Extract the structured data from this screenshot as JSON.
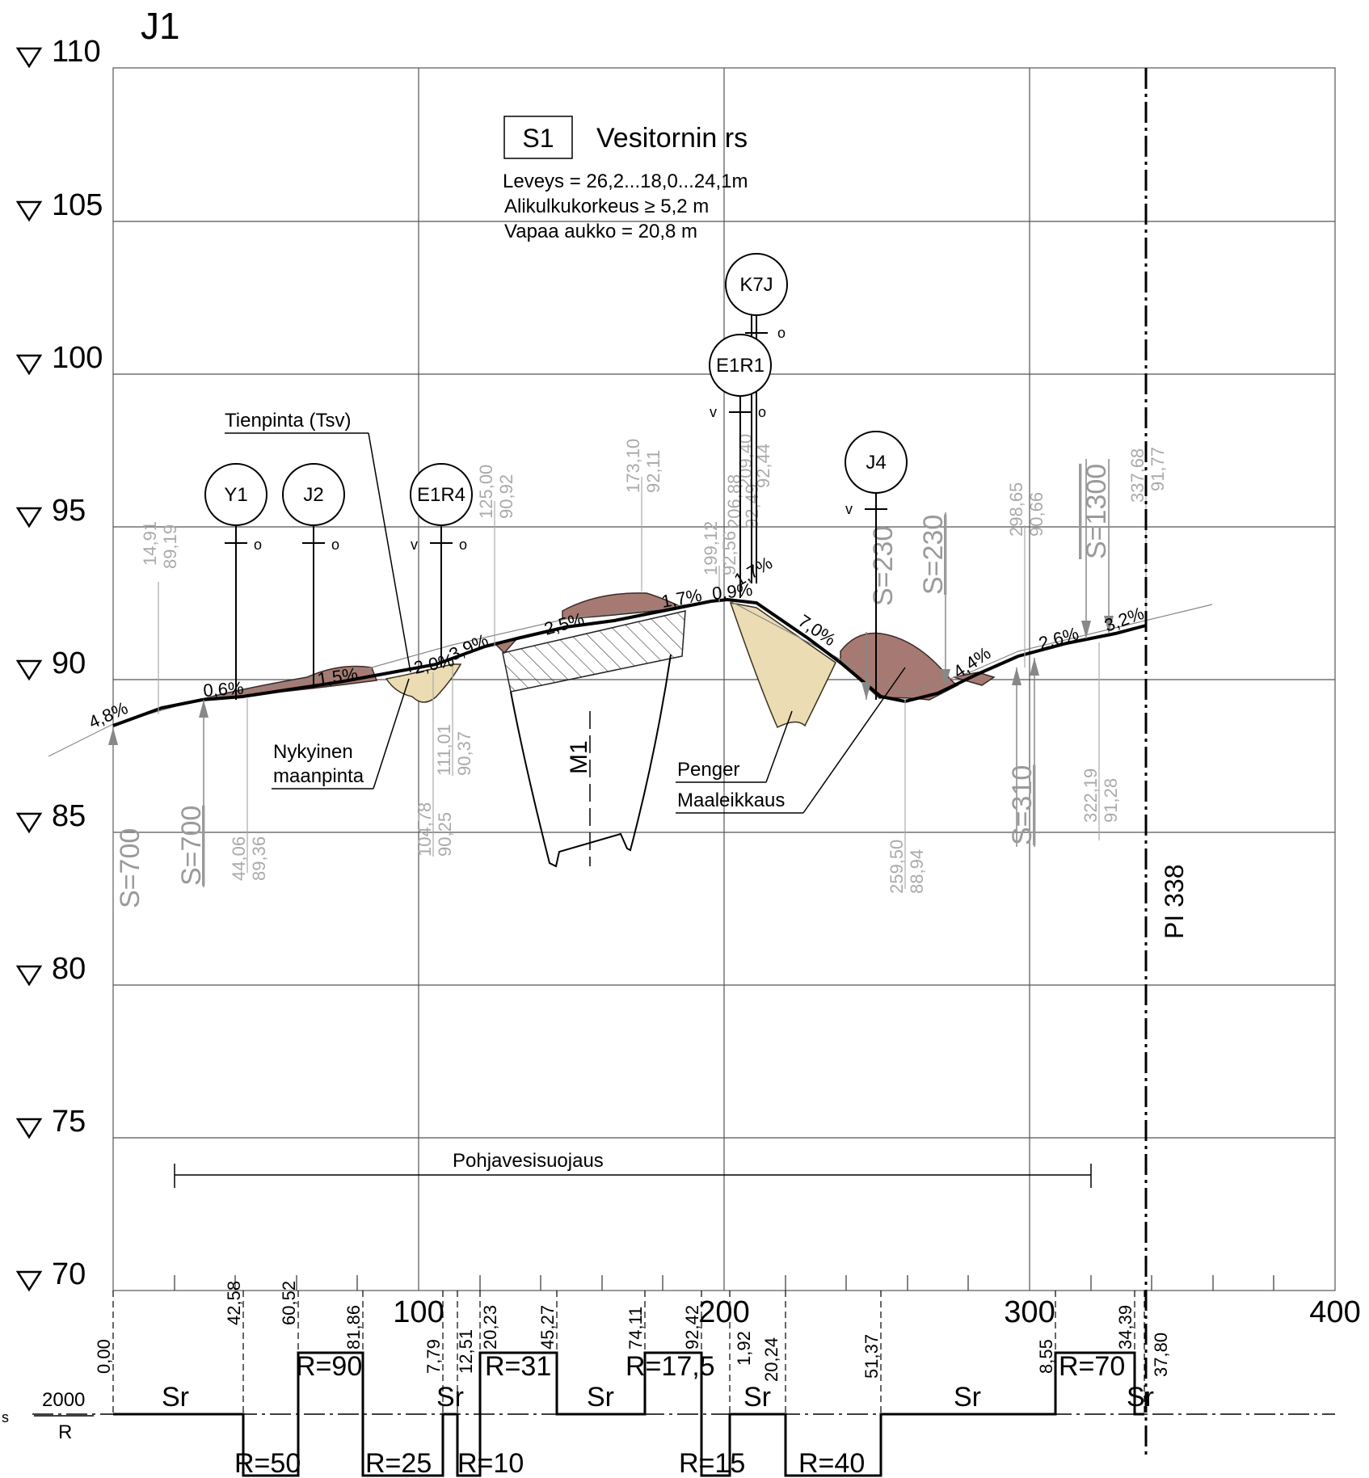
{
  "drawing": {
    "id": "J1",
    "pi_label": "PI 338"
  },
  "info": {
    "box_code": "S1",
    "title": "Vesitornin rs",
    "lines": [
      "Leveys = 26,2...18,0...24,1m",
      "Alikulkukorkeus ≥ 5,2 m",
      "Vapaa aukko = 20,8 m"
    ]
  },
  "elevations": [
    "110",
    "105",
    "100",
    "95",
    "90",
    "85",
    "80",
    "75",
    "70"
  ],
  "stations": [
    "100",
    "200",
    "300",
    "400"
  ],
  "labels": {
    "tienpinta": "Tienpinta (Tsv)",
    "nykyinen": "Nykyinen",
    "maanpinta": "maanpinta",
    "penger": "Penger",
    "maaleikkaus": "Maaleikkaus",
    "pohjavesi": "Pohjavesisuojaus",
    "m1": "M1"
  },
  "circles": [
    {
      "id": "Y1",
      "label": "Y1"
    },
    {
      "id": "J2",
      "label": "J2"
    },
    {
      "id": "E1R4",
      "label": "E1R4"
    },
    {
      "id": "K7J",
      "label": "K7J"
    },
    {
      "id": "E1R1",
      "label": "E1R1"
    },
    {
      "id": "J4",
      "label": "J4"
    }
  ],
  "grades": [
    "4,8%",
    "0,6%",
    "1,5%",
    "2,0%",
    "3,9%",
    "2,5%",
    "1,7%",
    "0,9%",
    "1,7%",
    "7,0%",
    "4,4%",
    "2,6%",
    "3,2%"
  ],
  "vertical_curves": [
    "S=700",
    "S=700",
    "S=230",
    "S=230",
    "S=310",
    "S=1300"
  ],
  "points": [
    {
      "sta": "14,91",
      "elev": "89,19"
    },
    {
      "sta": "44,06",
      "elev": "89,36"
    },
    {
      "sta": "104,78",
      "elev": "90,25"
    },
    {
      "sta": "111,01",
      "elev": "90,37"
    },
    {
      "sta": "125,00",
      "elev": "90,92"
    },
    {
      "sta": "173,10",
      "elev": "92,11"
    },
    {
      "sta": "199,12",
      "elev": "92,56"
    },
    {
      "sta": "206,88",
      "elev": "92,49"
    },
    {
      "sta": "209,40",
      "elev": "92,44"
    },
    {
      "sta": "259,50",
      "elev": "88,94"
    },
    {
      "sta": "298,65",
      "elev": "90,66"
    },
    {
      "sta": "322,19",
      "elev": "91,28"
    },
    {
      "sta": "337,68",
      "elev": "91,77"
    }
  ],
  "alignment": {
    "s_label": "s",
    "r_label": "R",
    "scale_label": "2000",
    "breaks": [
      "0,00",
      "42,58",
      "60,52",
      "81,86",
      "7,79",
      "12,51",
      "20,23",
      "45,27",
      "74,11",
      "92,42",
      "1,92",
      "20,24",
      "51,37",
      "8,55",
      "34,39",
      "37,80"
    ],
    "segments": [
      "Sr",
      "R=50",
      "R=90",
      "R=25",
      "Sr",
      "R=10",
      "R=31",
      "Sr",
      "R=17,5",
      "R=15",
      "Sr",
      "R=40",
      "Sr",
      "R=70",
      "Sr"
    ]
  }
}
